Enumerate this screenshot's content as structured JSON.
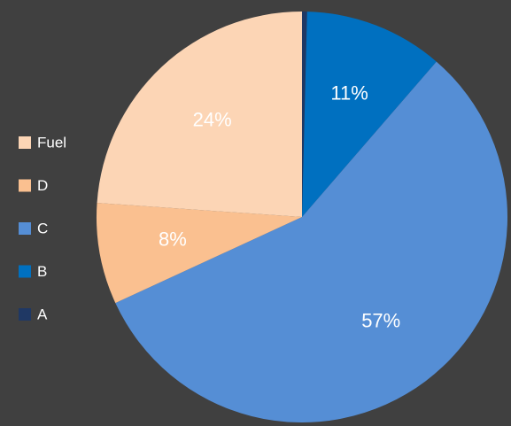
{
  "chart_data": {
    "type": "pie",
    "categories": [
      "A",
      "B",
      "C",
      "D",
      "Fuel"
    ],
    "values": [
      0.4,
      11,
      57,
      8,
      24
    ],
    "value_labels": [
      null,
      "11%",
      "57%",
      "8%",
      "24%"
    ],
    "colors": [
      "#1f3864",
      "#0070c0",
      "#558ed5",
      "#fac090",
      "#fcd5b5"
    ],
    "legend": "left"
  }
}
